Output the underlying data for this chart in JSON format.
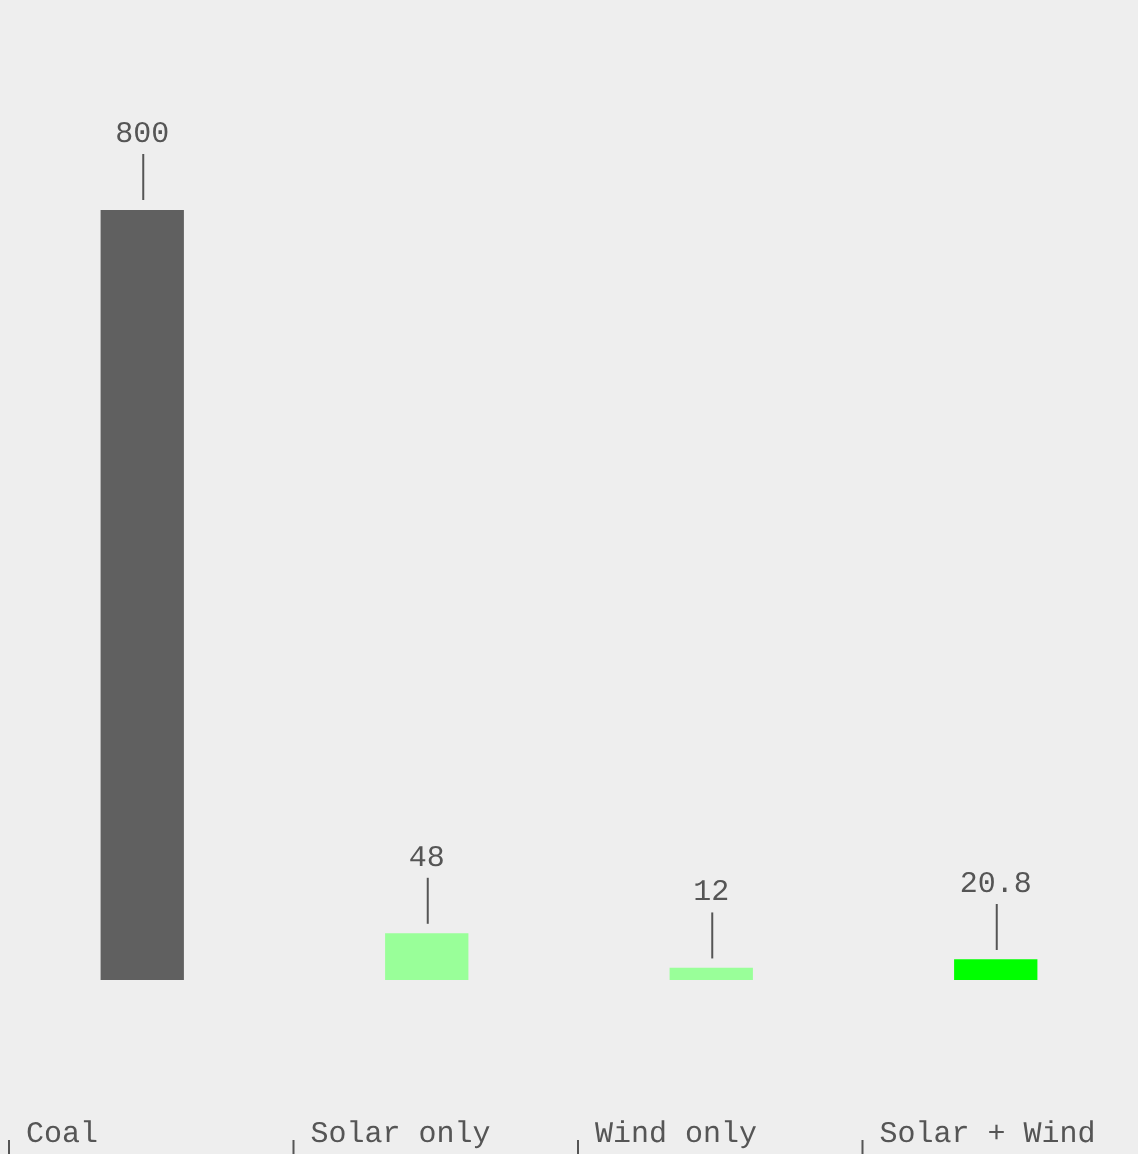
{
  "chart_data": {
    "type": "bar",
    "categories": [
      "Coal",
      "Solar only",
      "Wind only",
      "Solar + Wind"
    ],
    "values": [
      800,
      48,
      12,
      20.8
    ],
    "colors": [
      "#606060",
      "#99ff99",
      "#99ff99",
      "#00ff00"
    ],
    "data_labels": true,
    "legend": false
  }
}
